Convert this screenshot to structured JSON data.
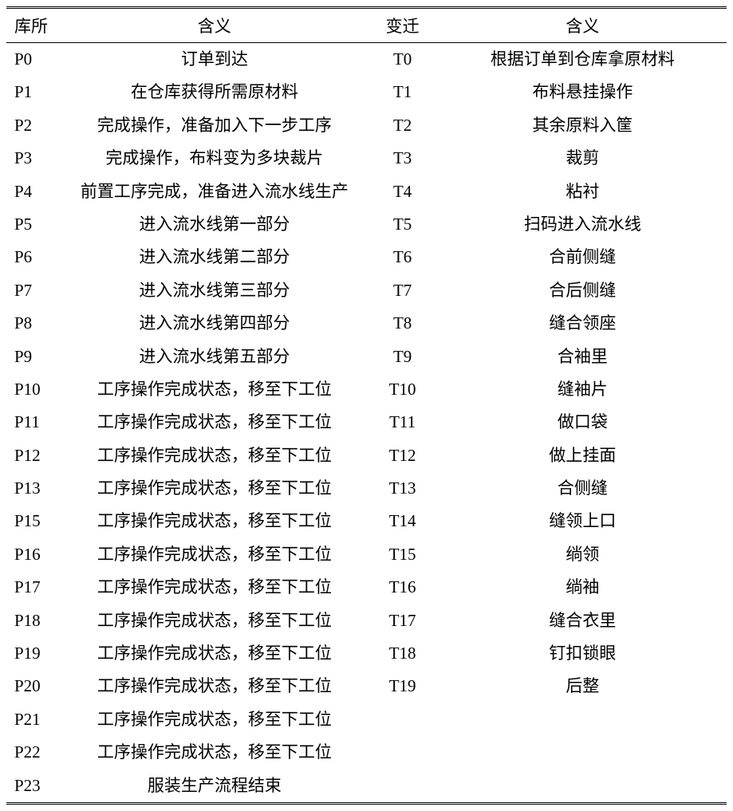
{
  "table": {
    "headers": {
      "place": "库所",
      "meaning1": "含义",
      "transition": "变迁",
      "meaning2": "含义"
    },
    "rows": [
      {
        "place": "P0",
        "meaning1": "订单到达",
        "transition": "T0",
        "meaning2": "根据订单到仓库拿原材料"
      },
      {
        "place": "P1",
        "meaning1": "在仓库获得所需原材料",
        "transition": "T1",
        "meaning2": "布料悬挂操作"
      },
      {
        "place": "P2",
        "meaning1": "完成操作，准备加入下一步工序",
        "transition": "T2",
        "meaning2": "其余原料入筐"
      },
      {
        "place": "P3",
        "meaning1": "完成操作，布料变为多块裁片",
        "transition": "T3",
        "meaning2": "裁剪"
      },
      {
        "place": "P4",
        "meaning1": "前置工序完成，准备进入流水线生产",
        "transition": "T4",
        "meaning2": "粘衬",
        "multiline": true
      },
      {
        "place": "P5",
        "meaning1": "进入流水线第一部分",
        "transition": "T5",
        "meaning2": "扫码进入流水线"
      },
      {
        "place": "P6",
        "meaning1": "进入流水线第二部分",
        "transition": "T6",
        "meaning2": "合前侧缝"
      },
      {
        "place": "P7",
        "meaning1": "进入流水线第三部分",
        "transition": "T7",
        "meaning2": "合后侧缝"
      },
      {
        "place": "P8",
        "meaning1": "进入流水线第四部分",
        "transition": "T8",
        "meaning2": "缝合领座"
      },
      {
        "place": "P9",
        "meaning1": "进入流水线第五部分",
        "transition": "T9",
        "meaning2": "合袖里"
      },
      {
        "place": "P10",
        "meaning1": "工序操作完成状态，移至下工位",
        "transition": "T10",
        "meaning2": "缝袖片"
      },
      {
        "place": "P11",
        "meaning1": "工序操作完成状态，移至下工位",
        "transition": "T11",
        "meaning2": "做口袋"
      },
      {
        "place": "P12",
        "meaning1": "工序操作完成状态，移至下工位",
        "transition": "T12",
        "meaning2": "做上挂面"
      },
      {
        "place": "P13",
        "meaning1": "工序操作完成状态，移至下工位",
        "transition": "T13",
        "meaning2": "合侧缝"
      },
      {
        "place": "P15",
        "meaning1": "工序操作完成状态，移至下工位",
        "transition": "T14",
        "meaning2": "缝领上口"
      },
      {
        "place": "P16",
        "meaning1": "工序操作完成状态，移至下工位",
        "transition": "T15",
        "meaning2": "绱领"
      },
      {
        "place": "P17",
        "meaning1": "工序操作完成状态，移至下工位",
        "transition": "T16",
        "meaning2": "绱袖"
      },
      {
        "place": "P18",
        "meaning1": "工序操作完成状态，移至下工位",
        "transition": "T17",
        "meaning2": "缝合衣里"
      },
      {
        "place": "P19",
        "meaning1": "工序操作完成状态，移至下工位",
        "transition": "T18",
        "meaning2": "钉扣锁眼"
      },
      {
        "place": "P20",
        "meaning1": "工序操作完成状态，移至下工位",
        "transition": "T19",
        "meaning2": "后整"
      },
      {
        "place": "P21",
        "meaning1": "工序操作完成状态，移至下工位",
        "transition": "",
        "meaning2": ""
      },
      {
        "place": "P22",
        "meaning1": "工序操作完成状态，移至下工位",
        "transition": "",
        "meaning2": ""
      },
      {
        "place": "P23",
        "meaning1": "服装生产流程结束",
        "transition": "",
        "meaning2": ""
      }
    ],
    "styling": {
      "background_color": "#ffffff",
      "text_color": "#000000",
      "border_color": "#000000",
      "font_family": "SimSun",
      "base_fontsize": 21,
      "header_border_width": 1.5,
      "outer_border_style": "double",
      "outer_border_width": 3,
      "row_line_height": 1.4,
      "col_widths": {
        "place": 70,
        "meaning1": 380,
        "transition": 90,
        "meaning2": 360
      },
      "alignments": {
        "place": "left",
        "meaning1": "center",
        "transition": "center",
        "meaning2": "center"
      }
    }
  }
}
